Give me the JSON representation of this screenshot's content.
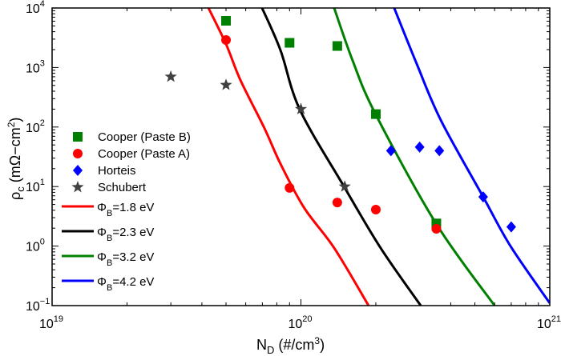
{
  "chart_data": {
    "type": "scatter",
    "title": "",
    "xlabel": {
      "main": "N",
      "sub": "D",
      "rest": " (#/cm",
      "sup": "3",
      "end": ")"
    },
    "ylabel": {
      "main": "ρ",
      "sub": "c",
      "rest": " (mΩ−cm",
      "sup": "2",
      "end": ")"
    },
    "xscale": "log",
    "yscale": "log",
    "xlim": [
      1e+19,
      1e+21
    ],
    "ylim": [
      0.1,
      10000
    ],
    "grid": false,
    "legend_position": "center-left",
    "x_ticks": [
      {
        "base": "10",
        "exp": "19",
        "value": 1e+19
      },
      {
        "base": "10",
        "exp": "20",
        "value": 1e+20
      },
      {
        "base": "10",
        "exp": "21",
        "value": 1e+21
      }
    ],
    "y_ticks": [
      {
        "base": "10",
        "exp": "−1",
        "value": 0.1
      },
      {
        "base": "10",
        "exp": "0",
        "value": 1
      },
      {
        "base": "10",
        "exp": "1",
        "value": 10
      },
      {
        "base": "10",
        "exp": "2",
        "value": 100
      },
      {
        "base": "10",
        "exp": "3",
        "value": 1000
      },
      {
        "base": "10",
        "exp": "4",
        "value": 10000
      }
    ],
    "scatter_series": [
      {
        "name": "Cooper (Paste B)",
        "marker": "square",
        "color": "#008000",
        "points": [
          [
            5e+19,
            6100
          ],
          [
            9e+19,
            2600
          ],
          [
            1.4e+20,
            2300
          ],
          [
            2e+20,
            165
          ],
          [
            3.5e+20,
            2.4
          ]
        ]
      },
      {
        "name": "Cooper (Paste A)",
        "marker": "circle",
        "color": "#ff0000",
        "points": [
          [
            5e+19,
            2900
          ],
          [
            9e+19,
            9.5
          ],
          [
            1.4e+20,
            5.4
          ],
          [
            2e+20,
            4.1
          ],
          [
            3.5e+20,
            1.95
          ]
        ]
      },
      {
        "name": "Horteis",
        "marker": "diamond",
        "color": "#0000ff",
        "points": [
          [
            2.3e+20,
            40
          ],
          [
            3e+20,
            46
          ],
          [
            3.6e+20,
            40
          ],
          [
            5.4e+20,
            6.7
          ],
          [
            7e+20,
            2.1
          ]
        ]
      },
      {
        "name": "Schubert",
        "marker": "star",
        "color": "#404040",
        "points": [
          [
            3e+19,
            700
          ],
          [
            5e+19,
            510
          ],
          [
            1e+20,
            200
          ],
          [
            1.5e+20,
            10
          ]
        ]
      }
    ],
    "line_series": [
      {
        "name_main": "Φ",
        "name_sub": "B",
        "name_rest": "=1.8  eV",
        "color": "#ff0000",
        "points": [
          [
            4.25e+19,
            10000
          ],
          [
            5e+19,
            2480
          ],
          [
            5.71e+19,
            617
          ],
          [
            7.13e+19,
            96
          ],
          [
            8.28e+19,
            24
          ],
          [
            1.03e+20,
            4.4
          ],
          [
            1.36e+20,
            0.93
          ],
          [
            1.87e+20,
            0.1
          ]
        ]
      },
      {
        "name_main": "Φ",
        "name_sub": "B",
        "name_rest": "=2.3  eV",
        "color": "#000000",
        "points": [
          [
            6.98e+19,
            10000
          ],
          [
            8.28e+19,
            1940
          ],
          [
            9.9e+19,
            196
          ],
          [
            1.49e+20,
            10
          ],
          [
            2.09e+20,
            0.93
          ],
          [
            3.03e+20,
            0.1
          ]
        ]
      },
      {
        "name_main": "Φ",
        "name_sub": "B",
        "name_rest": "=3.2  eV",
        "color": "#008000",
        "points": [
          [
            1.36e+20,
            10000
          ],
          [
            1.61e+20,
            1340
          ],
          [
            1.99e+20,
            168
          ],
          [
            3.49e+20,
            2.4
          ],
          [
            6e+20,
            0.1
          ]
        ]
      },
      {
        "name_main": "Φ",
        "name_sub": "B",
        "name_rest": "=4.2  eV",
        "color": "#0000ff",
        "points": [
          [
            2.37e+20,
            10000
          ],
          [
            2.92e+20,
            1150
          ],
          [
            3.65e+20,
            130
          ],
          [
            5.4e+20,
            6.7
          ],
          [
            6.95e+20,
            1.0
          ],
          [
            1e+21,
            0.11
          ]
        ]
      }
    ]
  }
}
